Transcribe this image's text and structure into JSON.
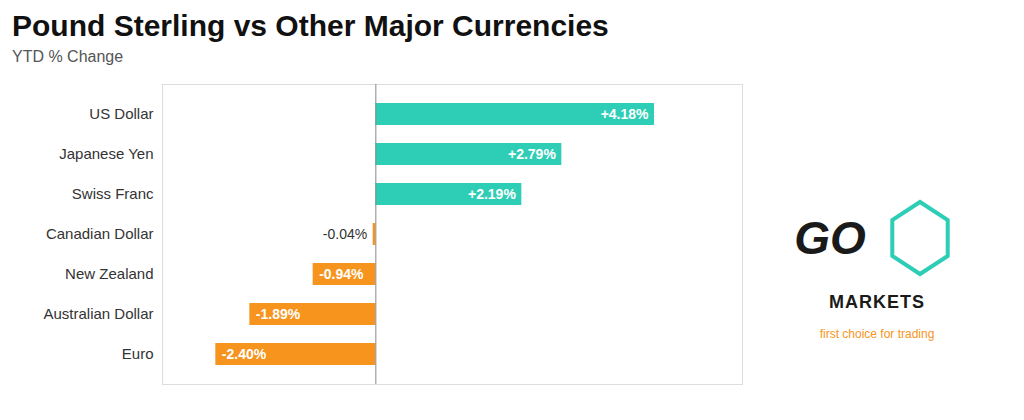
{
  "chart_data": {
    "type": "bar",
    "orientation": "horizontal",
    "title": "Pound Sterling vs Other Major Currencies",
    "subtitle": "YTD % Change",
    "categories": [
      "US Dollar",
      "Japanese Yen",
      "Swiss Franc",
      "Canadian Dollar",
      "New Zealand",
      "Australian Dollar",
      "Euro"
    ],
    "values": [
      4.18,
      2.79,
      2.19,
      -0.04,
      -0.94,
      -1.89,
      -2.4
    ],
    "value_labels": [
      "+4.18%",
      "+2.79%",
      "+2.19%",
      "-0.04%",
      "-0.94%",
      "-1.89%",
      "-2.40%"
    ],
    "data_labels": true,
    "colors": [
      "#2ecdb5",
      "#2ecdb5",
      "#2ecdb5",
      "#f7941d",
      "#f7941d",
      "#f7941d",
      "#f7941d"
    ],
    "xlim": [
      -3.2,
      5.5
    ],
    "grid": false,
    "tick_labels": "y",
    "annotations": [
      "GO",
      "MARKETS",
      "first choice for trading"
    ]
  }
}
